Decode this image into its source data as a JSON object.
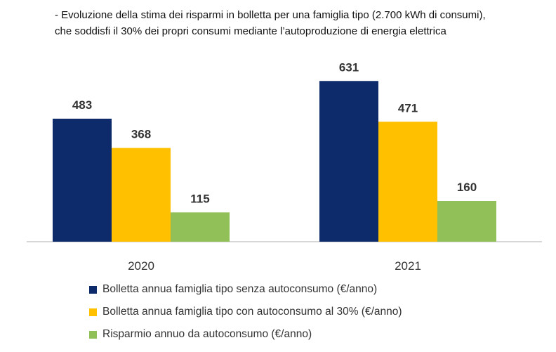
{
  "title": {
    "line1": "- Evoluzione della stima dei risparmi in bolletta per una famiglia tipo (2.700 kWh di consumi),",
    "line2": "che soddisfi il 30% dei propri consumi mediante l’autoproduzione di energia elettrica"
  },
  "chart_data": {
    "type": "bar",
    "categories": [
      "2020",
      "2021"
    ],
    "series": [
      {
        "name": "Bolletta annua famiglia tipo senza autoconsumo (€/anno)",
        "values": [
          483,
          631
        ],
        "color": "#0d2a6b"
      },
      {
        "name": "Bolletta annua famiglia tipo con autoconsumo al 30% (€/anno)",
        "values": [
          368,
          471
        ],
        "color": "#ffc000"
      },
      {
        "name": "Risparmio annuo da autoconsumo (€/anno)",
        "values": [
          115,
          160
        ],
        "color": "#92c058"
      }
    ],
    "data_labels": true,
    "ylim": [
      0,
      650
    ],
    "grid": false,
    "legend_position": "bottom"
  }
}
